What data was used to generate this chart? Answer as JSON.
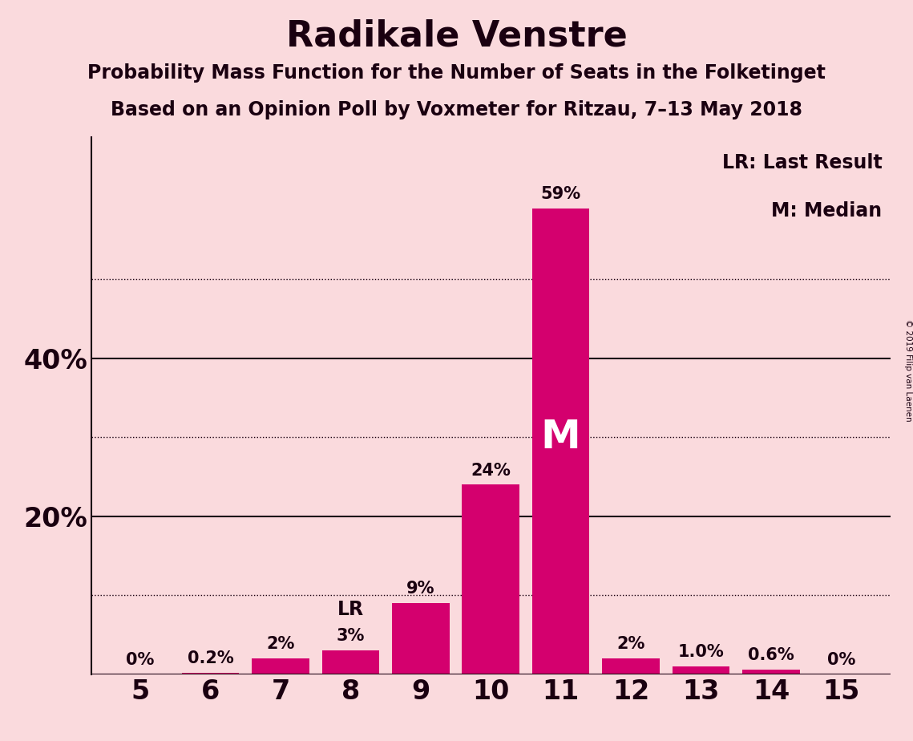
{
  "title": "Radikale Venstre",
  "subtitle1": "Probability Mass Function for the Number of Seats in the Folketinget",
  "subtitle2": "Based on an Opinion Poll by Voxmeter for Ritzau, 7–13 May 2018",
  "watermark": "© 2019 Filip van Laenen",
  "seats": [
    5,
    6,
    7,
    8,
    9,
    10,
    11,
    12,
    13,
    14,
    15
  ],
  "values": [
    0.0,
    0.2,
    2.0,
    3.0,
    9.0,
    24.0,
    59.0,
    2.0,
    1.0,
    0.6,
    0.0
  ],
  "bar_labels": [
    "0%",
    "0.2%",
    "2%",
    "3%",
    "9%",
    "24%",
    "59%",
    "2%",
    "1.0%",
    "0.6%",
    "0%"
  ],
  "lr_seat": 8,
  "median_seat": 11,
  "bar_color": "#d4006e",
  "background_color": "#fadadd",
  "title_color": "#1a0010",
  "bar_label_color": "#1a0010",
  "yticks": [
    20,
    40
  ],
  "ytick_labels": [
    "20%",
    "40%"
  ],
  "solid_gridlines": [
    20,
    40
  ],
  "dotted_gridlines": [
    10,
    30,
    50
  ],
  "ylim": [
    0,
    68
  ],
  "legend_lr": "LR: Last Result",
  "legend_m": "M: Median"
}
